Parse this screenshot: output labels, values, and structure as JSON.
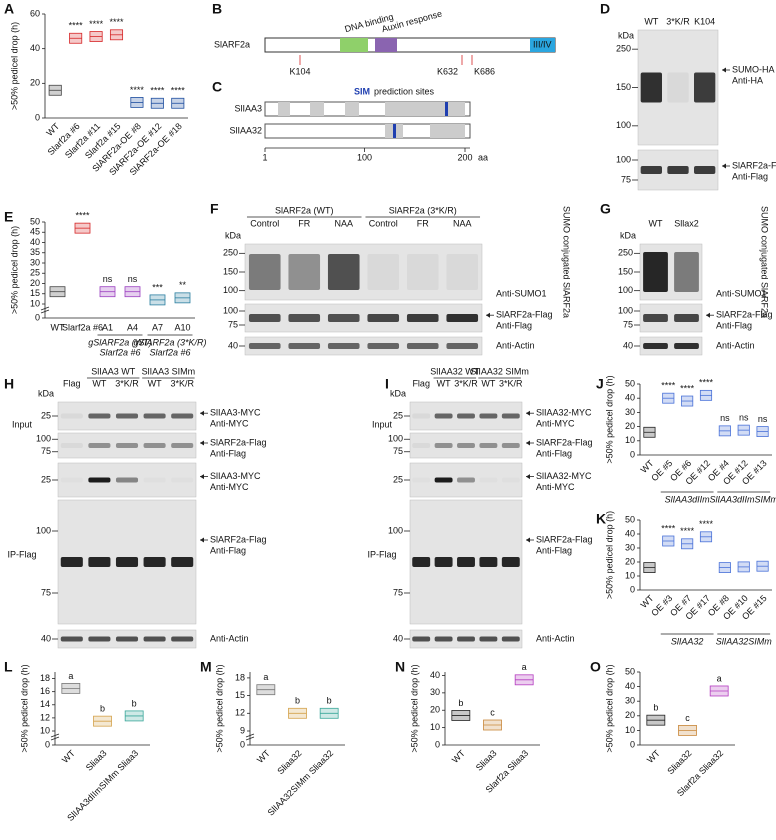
{
  "chart_data": [
    {
      "panel": "A",
      "type": "box",
      "ylabel": ">50% pedicel drop (h)",
      "categories": [
        "WT",
        "Slarf2a #6",
        "Slarf2a #11",
        "Slarf2a #15",
        "SlARF2a-OE #8",
        "SlARF2a-OE #12",
        "SlARF2a-OE #18"
      ],
      "values": [
        16,
        46,
        47,
        48,
        9,
        8.5,
        8.5
      ],
      "colors": [
        "#444444",
        "#d62728",
        "#d62728",
        "#d62728",
        "#1f4fa0",
        "#1f4fa0",
        "#1f4fa0"
      ],
      "ylim": [
        0,
        60
      ],
      "yticks": [
        0,
        20,
        40,
        60
      ],
      "sig": [
        null,
        "****",
        "****",
        "****",
        "****",
        "****",
        "****"
      ]
    },
    {
      "panel": "E",
      "type": "box",
      "ylabel": ">50% pedicel drop (h)",
      "categories": [
        "WT",
        "Slarf2a #6",
        "A1",
        "A4",
        "A7",
        "A10"
      ],
      "values": [
        16,
        47,
        16,
        16,
        12,
        13
      ],
      "colors": [
        "#444444",
        "#d62728",
        "#9b3fc0",
        "#9b3fc0",
        "#2a7fa0",
        "#2a7fa0"
      ],
      "ylim": [
        0,
        50
      ],
      "yticks": [
        0,
        10,
        15,
        20,
        25,
        30,
        35,
        40,
        45,
        50
      ],
      "axis_break": true,
      "sig": [
        null,
        "****",
        "ns",
        "ns",
        "***",
        "**"
      ],
      "groups": [
        [
          "gSlARF2a (WT)",
          "Slarf2a #6"
        ],
        [
          "gSlARF2a (3*K/R)",
          "Slarf2a #6"
        ]
      ]
    },
    {
      "panel": "J",
      "type": "box",
      "ylabel": ">50% pedicel drop (h)",
      "categories": [
        "WT",
        "OE #5",
        "OE #6",
        "OE #12",
        "OE #4",
        "OE #12",
        "OE #13"
      ],
      "values": [
        16,
        40,
        38,
        42,
        17,
        17.5,
        16.5
      ],
      "colors": [
        "#222222",
        "#4a72d8",
        "#4a72d8",
        "#4a72d8",
        "#4a72d8",
        "#4a72d8",
        "#4a72d8"
      ],
      "ylim": [
        0,
        50
      ],
      "yticks": [
        0,
        10,
        20,
        30,
        40,
        50
      ],
      "sig": [
        null,
        "****",
        "****",
        "****",
        "ns",
        "ns",
        "ns"
      ],
      "groups": [
        "SlIAA3dIIm",
        "SlIAA3dIImSIMm"
      ]
    },
    {
      "panel": "K",
      "type": "box",
      "ylabel": ">50% pedicel drop (h)",
      "categories": [
        "WT",
        "OE #3",
        "OE #7",
        "OE #17",
        "OE #8",
        "OE #10",
        "OE #15"
      ],
      "values": [
        16,
        35,
        33,
        38,
        16,
        16.5,
        17
      ],
      "colors": [
        "#222222",
        "#4a72d8",
        "#4a72d8",
        "#4a72d8",
        "#4a72d8",
        "#4a72d8",
        "#4a72d8"
      ],
      "ylim": [
        0,
        50
      ],
      "yticks": [
        0,
        10,
        20,
        30,
        40,
        50
      ],
      "sig": [
        null,
        "****",
        "****",
        "****",
        null,
        null,
        null
      ],
      "groups": [
        "SlIAA32",
        "SlIAA32SIMm"
      ]
    },
    {
      "panel": "L",
      "type": "box",
      "ylabel": ">50% pedicel drop (h)",
      "categories": [
        "WT",
        "Sliaa3",
        "SlIAA3dIImSIMm Sliaa3"
      ],
      "values": [
        16.5,
        11.5,
        12.3
      ],
      "colors": [
        "#777777",
        "#d4a24c",
        "#3aa79a"
      ],
      "ylim": [
        0,
        19
      ],
      "yticks": [
        0,
        10,
        12,
        14,
        16,
        18
      ],
      "axis_break": true,
      "sig": [
        "a",
        "b",
        "b"
      ]
    },
    {
      "panel": "M",
      "type": "box",
      "ylabel": ">50% pedicel drop (h)",
      "categories": [
        "WT",
        "Sliaa32",
        "SlIAA32SIMm Sliaa32"
      ],
      "values": [
        16,
        12,
        12
      ],
      "colors": [
        "#777777",
        "#d4a24c",
        "#3aa79a"
      ],
      "ylim": [
        0,
        19
      ],
      "yticks": [
        0,
        9,
        12,
        15,
        18
      ],
      "axis_break": true,
      "sig": [
        "a",
        "b",
        "b"
      ]
    },
    {
      "panel": "N",
      "type": "box",
      "ylabel": ">50% pedicel drop (h)",
      "categories": [
        "WT",
        "Sliaa3",
        "Slarf2a Sliaa3"
      ],
      "values": [
        17,
        11.5,
        37.5
      ],
      "colors": [
        "#222222",
        "#c9873a",
        "#b43cc0"
      ],
      "ylim": [
        0,
        42
      ],
      "yticks": [
        0,
        10,
        20,
        30,
        40
      ],
      "sig": [
        "b",
        "c",
        "a"
      ]
    },
    {
      "panel": "O",
      "type": "box",
      "ylabel": ">50% pedicel drop (h)",
      "categories": [
        "WT",
        "Sliaa32",
        "Slarf2a Sliaa32"
      ],
      "values": [
        17,
        10,
        37
      ],
      "colors": [
        "#222222",
        "#c9873a",
        "#b43cc0"
      ],
      "ylim": [
        0,
        50
      ],
      "yticks": [
        0,
        10,
        20,
        30,
        40,
        50
      ],
      "sig": [
        "b",
        "c",
        "a"
      ]
    }
  ],
  "diagram_b": {
    "panel": "B",
    "protein": "SlARF2a",
    "domains": [
      "DNA binding",
      "Auxin response",
      "III/IV"
    ],
    "sites": [
      "K104",
      "K632",
      "K686"
    ]
  },
  "diagram_c": {
    "panel": "C",
    "title_bold": "SIM",
    "title_rest": "prediction sites",
    "proteins": [
      "SlIAA3",
      "SlIAA32"
    ],
    "axis": [
      1,
      100,
      200
    ],
    "unit": "aa"
  },
  "blots": [
    {
      "panel": "D",
      "lanes": [
        "WT",
        "3*K/R",
        "K104"
      ],
      "unit": "kDa",
      "strips": [
        {
          "markers": [
            250,
            150,
            100
          ],
          "labels": [
            "SUMO-HA"
          ],
          "antibody": "Anti-HA"
        },
        {
          "markers": [
            100,
            75
          ],
          "labels": [
            "SlARF2a-Flag"
          ],
          "antibody": "Anti-Flag"
        }
      ]
    },
    {
      "panel": "F",
      "groups": [
        "SlARF2a (WT)",
        "SlARF2a (3*K/R)"
      ],
      "lanes": [
        "Control",
        "FR",
        "NAA",
        "Control",
        "FR",
        "NAA"
      ],
      "unit": "kDa",
      "strips": [
        {
          "markers": [
            250,
            150,
            100
          ],
          "labels": [
            "SUMO conjugated SlARF2a"
          ],
          "antibody": "Anti-SUMO1"
        },
        {
          "markers": [
            100,
            75
          ],
          "labels": [
            "SlARF2a-Flag"
          ],
          "antibody": "Anti-Flag"
        },
        {
          "markers": [
            40
          ],
          "antibody": "Anti-Actin"
        }
      ]
    },
    {
      "panel": "G",
      "lanes": [
        "WT",
        "Sllax2"
      ],
      "unit": "kDa",
      "strips": [
        {
          "markers": [
            250,
            150,
            100
          ],
          "labels": [
            "SUMO conjugated SlARF2a"
          ],
          "antibody": "Anti-SUMO1"
        },
        {
          "markers": [
            100,
            75
          ],
          "labels": [
            "SlARF2a-Flag"
          ],
          "antibody": "Anti-Flag"
        },
        {
          "markers": [
            40
          ],
          "antibody": "Anti-Actin"
        }
      ]
    },
    {
      "panel": "H",
      "groups": [
        "SlIAA3 WT",
        "SlIAA3 SIMm"
      ],
      "lanes": [
        "Flag",
        "WT",
        "3*K/R",
        "WT",
        "3*K/R"
      ],
      "unit": "kDa",
      "sections": [
        "Input",
        "IP-Flag"
      ],
      "strips": [
        {
          "markers": [
            25
          ],
          "labels": [
            "SlIAA3-MYC"
          ],
          "antibody": "Anti-MYC"
        },
        {
          "markers": [
            100,
            75
          ],
          "labels": [
            "SlARF2a-Flag"
          ],
          "antibody": "Anti-Flag"
        },
        {
          "markers": [
            25
          ],
          "labels": [
            "SlIAA3-MYC"
          ],
          "antibody": "Anti-MYC"
        },
        {
          "markers": [
            100,
            75
          ],
          "labels": [
            "SlARF2a-Flag"
          ],
          "antibody": "Anti-Flag"
        },
        {
          "markers": [
            40
          ],
          "antibody": "Anti-Actin"
        }
      ]
    },
    {
      "panel": "I",
      "groups": [
        "SlIAA32 WT",
        "SlIAA32 SIMm"
      ],
      "lanes": [
        "Flag",
        "WT",
        "3*K/R",
        "WT",
        "3*K/R"
      ],
      "unit": "kDa",
      "sections": [
        "Input",
        "IP-Flag"
      ],
      "strips": [
        {
          "markers": [
            25
          ],
          "labels": [
            "SlIAA32-MYC"
          ],
          "antibody": "Anti-MYC"
        },
        {
          "markers": [
            100,
            75
          ],
          "labels": [
            "SlARF2a-Flag"
          ],
          "antibody": "Anti-Flag"
        },
        {
          "markers": [
            25
          ],
          "labels": [
            "SlIAA32-MYC"
          ],
          "antibody": "Anti-MYC"
        },
        {
          "markers": [
            100,
            75
          ],
          "labels": [
            "SlARF2a-Flag"
          ],
          "antibody": "Anti-Flag"
        },
        {
          "markers": [
            40
          ],
          "antibody": "Anti-Actin"
        }
      ]
    }
  ]
}
